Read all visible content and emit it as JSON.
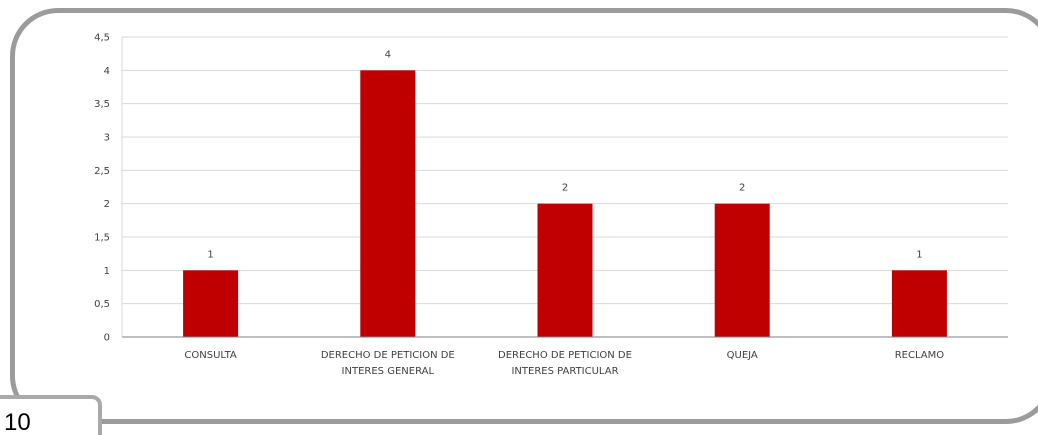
{
  "page": {
    "number": "10"
  },
  "colors": {
    "bar": "#c00000",
    "grid": "#d9d9d9",
    "axis": "#7f7f7f",
    "frame": "#9b9b9b"
  },
  "chart_data": {
    "type": "bar",
    "categories": [
      [
        "CONSULTA"
      ],
      [
        "DERECHO DE PETICION DE",
        "INTERES GENERAL"
      ],
      [
        "DERECHO DE PETICION DE",
        "INTERES PARTICULAR"
      ],
      [
        "QUEJA"
      ],
      [
        "RECLAMO"
      ]
    ],
    "values": [
      1,
      4,
      2,
      2,
      1
    ],
    "data_labels": [
      "1",
      "4",
      "2",
      "2",
      "1"
    ],
    "yticks": [
      "0",
      "0,5",
      "1",
      "1,5",
      "2",
      "2,5",
      "3",
      "3,5",
      "4",
      "4,5"
    ],
    "ylim": [
      0,
      4.5
    ],
    "ystep": 0.5,
    "grid": true
  }
}
